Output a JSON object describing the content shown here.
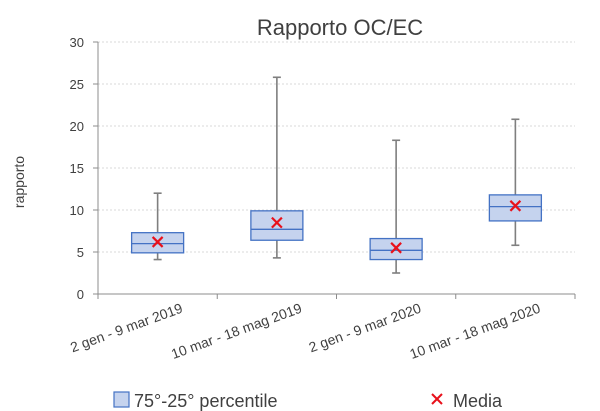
{
  "colors": {
    "box_fill": "#c5d3ee",
    "box_stroke": "#4472c4",
    "whisker": "#7f7f7f",
    "mean_marker": "#e8111b",
    "text": "#404040",
    "axis": "#8c8c8c",
    "grid": "#d9d9d9"
  },
  "chart_data": {
    "type": "box",
    "title": "Rapporto OC/EC",
    "xlabel": "",
    "ylabel": "rapporto",
    "ylim": [
      0,
      30
    ],
    "yticks": [
      0,
      5,
      10,
      15,
      20,
      25,
      30
    ],
    "grid": true,
    "legend_position": "bottom",
    "categories": [
      "2 gen - 9 mar 2019",
      "10 mar - 18 mag 2019",
      "2 gen - 9 mar 2020",
      "10 mar - 18 mag 2020"
    ],
    "boxes": [
      {
        "category": "2 gen - 9 mar 2019",
        "min": 4.1,
        "q1": 4.9,
        "median": 6.0,
        "q3": 7.3,
        "max": 12.0,
        "mean": 6.2
      },
      {
        "category": "10 mar - 18 mag 2019",
        "min": 4.3,
        "q1": 6.4,
        "median": 7.7,
        "q3": 9.9,
        "max": 25.8,
        "mean": 8.5
      },
      {
        "category": "2 gen - 9 mar 2020",
        "min": 2.5,
        "q1": 4.1,
        "median": 5.2,
        "q3": 6.6,
        "max": 18.3,
        "mean": 5.5
      },
      {
        "category": "10 mar - 18 mag 2020",
        "min": 5.8,
        "q1": 8.7,
        "median": 10.4,
        "q3": 11.8,
        "max": 20.8,
        "mean": 10.5
      }
    ],
    "legend": [
      {
        "label": "75°-25° percentile",
        "marker": "box"
      },
      {
        "label": "Media",
        "marker": "x"
      }
    ]
  }
}
